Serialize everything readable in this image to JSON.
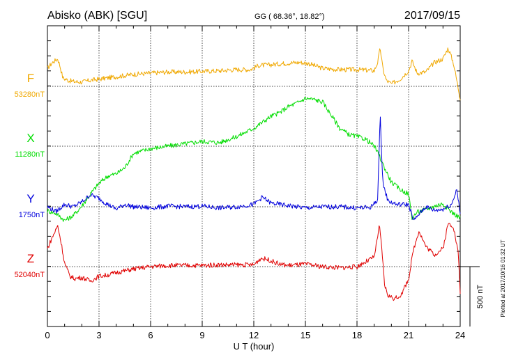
{
  "header": {
    "station": "Abisko (ABK)  [SGU]",
    "coords": "GG ( 68.36°,  18.82°)",
    "date": "2017/09/15"
  },
  "footer": {
    "plotted": "Plotted at 2017/10/16 01:32 UT"
  },
  "chart_data": {
    "type": "line",
    "xlabel": "U T (hour)",
    "xlim": [
      0,
      24
    ],
    "xticks": [
      "0",
      "3",
      "6",
      "9",
      "12",
      "15",
      "18",
      "21",
      "24"
    ],
    "scale_bar": {
      "label": "500 nT",
      "value": 500
    },
    "grid": true,
    "series": [
      {
        "name": "F",
        "baseline_label": "53280nT",
        "color": "#f0a800",
        "x": [
          0,
          0.3,
          0.6,
          0.75,
          0.9,
          1.2,
          1.5,
          2,
          2.5,
          3,
          3.5,
          4,
          5,
          6,
          7,
          8,
          9,
          10,
          11,
          11.8,
          12.3,
          13,
          14,
          14.7,
          15.2,
          16,
          17,
          18,
          19,
          19.2,
          19.35,
          19.5,
          19.7,
          20,
          20.5,
          21,
          21.2,
          21.5,
          22,
          22.5,
          23,
          23.3,
          23.6,
          24
        ],
        "values": [
          150,
          200,
          230,
          160,
          70,
          50,
          40,
          35,
          50,
          60,
          70,
          80,
          100,
          110,
          120,
          120,
          125,
          130,
          140,
          140,
          175,
          180,
          195,
          200,
          190,
          150,
          140,
          140,
          130,
          200,
          320,
          150,
          50,
          20,
          60,
          130,
          210,
          110,
          120,
          200,
          230,
          320,
          200,
          -100
        ]
      },
      {
        "name": "X",
        "baseline_label": "11280nT",
        "color": "#00dd00",
        "x": [
          0,
          0.5,
          1,
          1.5,
          2,
          2.5,
          3,
          3.5,
          4,
          4.5,
          5,
          6,
          7,
          8,
          9,
          10,
          11,
          12,
          12.5,
          13,
          13.5,
          14,
          14.5,
          15,
          15.5,
          16,
          16.5,
          17,
          17.5,
          18,
          18.5,
          19,
          19.3,
          19.5,
          20,
          20.5,
          21,
          21.2,
          21.5,
          22,
          22.5,
          23,
          23.5,
          24
        ],
        "values": [
          -540,
          -560,
          -620,
          -580,
          -500,
          -400,
          -310,
          -250,
          -230,
          -180,
          -60,
          -20,
          0,
          20,
          40,
          30,
          80,
          150,
          200,
          250,
          280,
          330,
          360,
          400,
          390,
          370,
          260,
          150,
          100,
          80,
          60,
          0,
          -80,
          -150,
          -300,
          -360,
          -400,
          -600,
          -550,
          -530,
          -500,
          -480,
          -550,
          -600
        ]
      },
      {
        "name": "Y",
        "baseline_label": "1750nT",
        "color": "#0000dd",
        "x": [
          0,
          0.5,
          1,
          1.5,
          2,
          2.5,
          3,
          3.5,
          4,
          4.5,
          5,
          6,
          7,
          8,
          9,
          10,
          11,
          12,
          12.5,
          13,
          14,
          15,
          16,
          17,
          18,
          18.8,
          19.2,
          19.35,
          19.5,
          19.8,
          20.3,
          21,
          21.3,
          21.6,
          22,
          22.5,
          23,
          23.5,
          23.8,
          24
        ],
        "values": [
          0,
          -40,
          20,
          0,
          40,
          100,
          70,
          20,
          -20,
          20,
          0,
          -10,
          5,
          0,
          5,
          -10,
          0,
          20,
          80,
          30,
          10,
          -10,
          0,
          0,
          -10,
          -5,
          60,
          770,
          200,
          50,
          20,
          20,
          -120,
          -60,
          0,
          -30,
          -20,
          20,
          150,
          -60
        ]
      },
      {
        "name": "Z",
        "baseline_label": "52040nT",
        "color": "#e00000",
        "x": [
          0,
          0.3,
          0.6,
          0.8,
          1,
          1.3,
          1.6,
          2,
          2.5,
          3,
          3.5,
          4,
          5,
          6,
          7,
          8,
          9,
          10,
          11,
          12,
          12.4,
          12.8,
          13.5,
          14,
          15,
          16,
          17,
          18,
          19,
          19.3,
          19.45,
          19.6,
          19.8,
          20.2,
          20.6,
          21,
          21.3,
          21.6,
          22,
          22.5,
          23,
          23.3,
          23.6,
          23.9,
          24
        ],
        "values": [
          150,
          250,
          340,
          200,
          30,
          -80,
          -100,
          -90,
          -120,
          -80,
          -70,
          -50,
          -20,
          0,
          10,
          10,
          10,
          15,
          15,
          15,
          70,
          60,
          20,
          10,
          20,
          0,
          -10,
          0,
          80,
          340,
          140,
          -150,
          -240,
          -270,
          -230,
          -100,
          150,
          300,
          170,
          100,
          150,
          360,
          340,
          100,
          -220
        ]
      }
    ]
  }
}
